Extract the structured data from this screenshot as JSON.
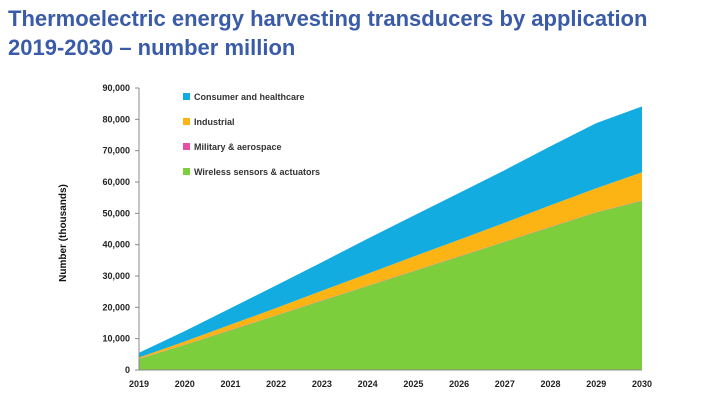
{
  "page": {
    "title_line1": "Thermoelectric energy harvesting transducers by application",
    "title_line2": "2019-2030 – number million"
  },
  "chart_data": {
    "type": "area",
    "stacked": true,
    "ylabel": "Number (thousands)",
    "xlabel": "",
    "x": [
      "2019",
      "2020",
      "2021",
      "2022",
      "2023",
      "2024",
      "2025",
      "2026",
      "2027",
      "2028",
      "2029",
      "2030"
    ],
    "ylim": [
      0,
      90000
    ],
    "yticks": [
      0,
      10000,
      20000,
      30000,
      40000,
      50000,
      60000,
      70000,
      80000,
      90000
    ],
    "ytick_labels": [
      "0",
      "10,000",
      "20,000",
      "30,000",
      "40,000",
      "50,000",
      "60,000",
      "70,000",
      "80,000",
      "90,000"
    ],
    "legend_position": "top-left",
    "grid": false,
    "series": [
      {
        "name": "Wireless sensors & actuators",
        "color": "#7dce3c",
        "values": [
          3500,
          8000,
          12700,
          17400,
          22100,
          26800,
          31500,
          36200,
          40900,
          45600,
          50300,
          54000
        ]
      },
      {
        "name": "Military & aerospace",
        "color": "#e64fa8",
        "values": [
          100,
          100,
          100,
          100,
          100,
          100,
          100,
          100,
          100,
          100,
          100,
          100
        ]
      },
      {
        "name": "Industrial",
        "color": "#fcb415",
        "values": [
          400,
          1000,
          1700,
          2300,
          3100,
          3800,
          4600,
          5300,
          6000,
          6900,
          7600,
          9000
        ]
      },
      {
        "name": "Consumer and healthcare",
        "color": "#12ace1",
        "values": [
          1500,
          3300,
          5200,
          7200,
          9100,
          11200,
          13000,
          14900,
          16800,
          18800,
          20800,
          21000
        ]
      }
    ],
    "legend_order": [
      "Consumer and healthcare",
      "Industrial",
      "Military & aerospace",
      "Wireless sensors & actuators"
    ]
  }
}
